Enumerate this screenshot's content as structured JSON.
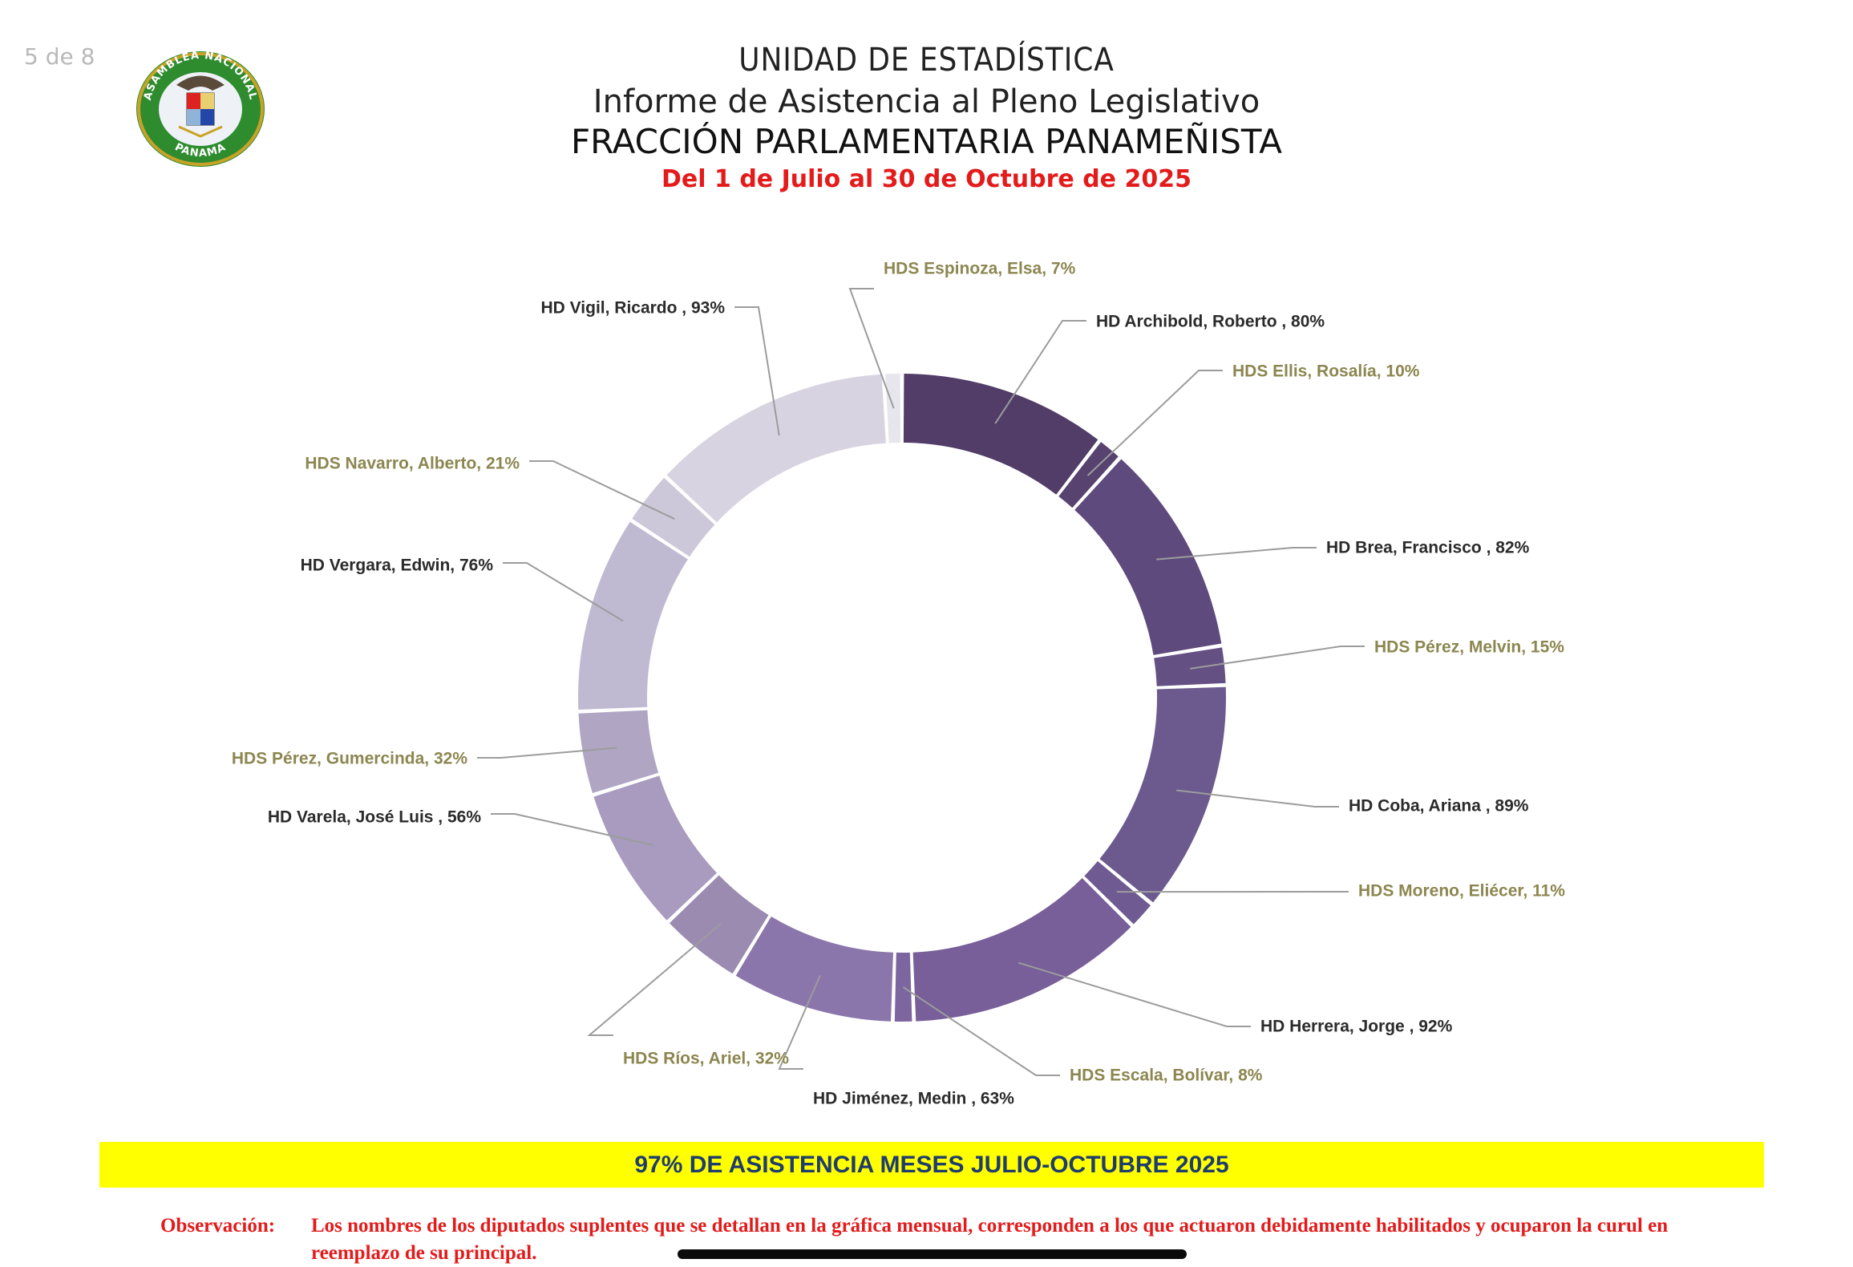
{
  "page_counter": "5 de 8",
  "seal": {
    "top_text": "ASAMBLEA NACIONAL",
    "bottom_text": "PANAMA"
  },
  "header": {
    "unit": "UNIDAD DE ESTADÍSTICA",
    "report": "Informe de Asistencia al Pleno Legislativo",
    "fraction": "FRACCIÓN PARLAMENTARIA PANAMEÑISTA",
    "period": "Del 1 de Julio al 30 de Octubre de 2025"
  },
  "chart_data": {
    "type": "pie",
    "slices": [
      {
        "label": "HD Archibold, Roberto , 80%",
        "value": 80,
        "color": "#513d68",
        "label_color": "#2b2b2b"
      },
      {
        "label": "HDS Ellis, Rosalía, 10%",
        "value": 10,
        "color": "#574270",
        "label_color": "#8c8650"
      },
      {
        "label": "HD Brea, Francisco , 82%",
        "value": 82,
        "color": "#5e4a7c",
        "label_color": "#2b2b2b"
      },
      {
        "label": "HDS Pérez, Melvin, 15%",
        "value": 15,
        "color": "#655084",
        "label_color": "#8c8650"
      },
      {
        "label": "HD Coba, Ariana  , 89%",
        "value": 89,
        "color": "#6c5a8e",
        "label_color": "#2b2b2b"
      },
      {
        "label": "HDS Moreno, Eliécer, 11%",
        "value": 11,
        "color": "#6f5a92",
        "label_color": "#8c8650"
      },
      {
        "label": "HD Herrera, Jorge  , 92%",
        "value": 92,
        "color": "#785f99",
        "label_color": "#2b2b2b"
      },
      {
        "label": "HDS Escala, Bolívar, 8%",
        "value": 8,
        "color": "#7d66a0",
        "label_color": "#8c8650"
      },
      {
        "label": "HD Jiménez, Medin , 63%",
        "value": 63,
        "color": "#8b76ab",
        "label_color": "#2b2b2b"
      },
      {
        "label": "HDS Ríos, Ariel, 32%",
        "value": 32,
        "color": "#9b8bb1",
        "label_color": "#8c8650"
      },
      {
        "label": "HD Varela, José Luis , 56%",
        "value": 56,
        "color": "#a89bbf",
        "label_color": "#2b2b2b"
      },
      {
        "label": "HDS Pérez, Gumercinda, 32%",
        "value": 32,
        "color": "#b0a6c3",
        "label_color": "#8c8650"
      },
      {
        "label": "HD Vergara, Edwin, 76%",
        "value": 76,
        "color": "#c0b9d2",
        "label_color": "#2b2b2b"
      },
      {
        "label": "HDS Navarro, Alberto, 21%",
        "value": 21,
        "color": "#cdc7da",
        "label_color": "#8c8650"
      },
      {
        "label": "HD Vigil, Ricardo , 93%",
        "value": 93,
        "color": "#d8d3e1",
        "label_color": "#2b2b2b"
      },
      {
        "label": "HDS Espinoza, Elsa, 7%",
        "value": 7,
        "color": "#e7e6ec",
        "label_color": "#8c8650"
      }
    ]
  },
  "banner": {
    "text": "97% DE ASISTENCIA MESES JULIO-OCTUBRE 2025"
  },
  "note": {
    "label": "Observación:",
    "text": "Los nombres de los diputados suplentes que se detallan en la gráfica mensual, corresponden a  los que actuaron debidamente habilitados y ocuparon la curul en reemplazo de su principal."
  }
}
